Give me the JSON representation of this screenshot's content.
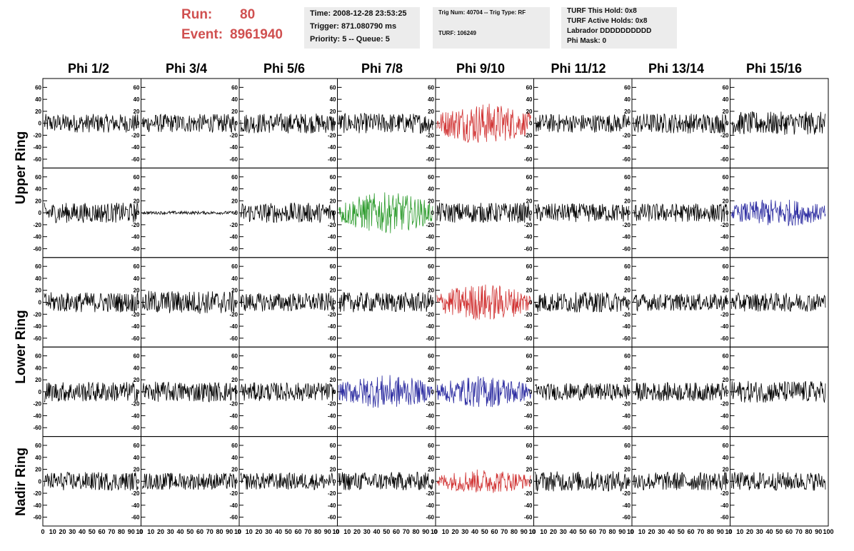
{
  "header": {
    "run_label": "Run:",
    "run_value": "80",
    "event_label": "Event:",
    "event_value": "8961940",
    "time_text": "Time: 2008-12-28 23:53:25",
    "trigger_text": "Trigger: 871.080790 ms",
    "priority_text": "Priority: 5 -- Queue: 5",
    "trig_num_text": "Trig Num: 40704 -- Trig Type: RF",
    "turf_text": "TURF: 106249",
    "turf_hold_text": "TURF This Hold: 0x8",
    "turf_active_text": "TURF Active Holds: 0x8",
    "labrador_text": "Labrador DDDDDDDDDD",
    "phi_mask_text": "Phi Mask: 0"
  },
  "columns": [
    "Phi 1/2",
    "Phi 3/4",
    "Phi 5/6",
    "Phi 7/8",
    "Phi 9/10",
    "Phi 11/12",
    "Phi 13/14",
    "Phi 15/16"
  ],
  "rows": [
    {
      "label": "Upper Ring",
      "span": [
        0,
        1
      ]
    },
    {
      "label": "Lower Ring",
      "span": [
        2,
        3
      ]
    },
    {
      "label": "Nadir Ring",
      "span": [
        4,
        4
      ]
    }
  ],
  "colors": {
    "black": "#000000",
    "red": "#d03030",
    "green": "#2a9a2a",
    "blue": "#2a2aa0",
    "header_red": "#d05050",
    "box_gray": "#ececec"
  },
  "chart_data": {
    "type": "line",
    "panel_rows": 5,
    "panel_cols": 8,
    "xlim": [
      0,
      100
    ],
    "ylim": [
      -70,
      70
    ],
    "y_ticks": [
      -60,
      -40,
      -20,
      0,
      20,
      40,
      60
    ],
    "x_tick_labels": [
      "0",
      "10",
      "20",
      "30",
      "40",
      "50",
      "60",
      "70",
      "80",
      "90",
      "100"
    ],
    "panels": [
      [
        {
          "color": "black",
          "amp": 12
        },
        {
          "color": "black",
          "amp": 12
        },
        {
          "color": "black",
          "amp": 13
        },
        {
          "color": "black",
          "amp": 13
        },
        {
          "color": "red",
          "amp": 22
        },
        {
          "color": "black",
          "amp": 12
        },
        {
          "color": "black",
          "amp": 13
        },
        {
          "color": "black",
          "amp": 15
        }
      ],
      [
        {
          "color": "black",
          "amp": 13
        },
        {
          "color": "black",
          "amp": 2
        },
        {
          "color": "black",
          "amp": 13
        },
        {
          "color": "green",
          "amp": 22
        },
        {
          "color": "black",
          "amp": 13
        },
        {
          "color": "black",
          "amp": 12
        },
        {
          "color": "black",
          "amp": 12
        },
        {
          "color": "blue",
          "amp": 15
        }
      ],
      [
        {
          "color": "black",
          "amp": 13
        },
        {
          "color": "black",
          "amp": 15
        },
        {
          "color": "black",
          "amp": 12
        },
        {
          "color": "black",
          "amp": 13
        },
        {
          "color": "red",
          "amp": 20
        },
        {
          "color": "black",
          "amp": 13
        },
        {
          "color": "black",
          "amp": 11
        },
        {
          "color": "black",
          "amp": 12
        }
      ],
      [
        {
          "color": "black",
          "amp": 13
        },
        {
          "color": "black",
          "amp": 13
        },
        {
          "color": "black",
          "amp": 12
        },
        {
          "color": "blue",
          "amp": 18
        },
        {
          "color": "blue",
          "amp": 17
        },
        {
          "color": "black",
          "amp": 11
        },
        {
          "color": "black",
          "amp": 12
        },
        {
          "color": "black",
          "amp": 14
        }
      ],
      [
        {
          "color": "black",
          "amp": 12
        },
        {
          "color": "black",
          "amp": 11
        },
        {
          "color": "black",
          "amp": 11
        },
        {
          "color": "black",
          "amp": 12
        },
        {
          "color": "red",
          "amp": 13
        },
        {
          "color": "black",
          "amp": 13
        },
        {
          "color": "black",
          "amp": 12
        },
        {
          "color": "black",
          "amp": 12
        }
      ]
    ]
  }
}
